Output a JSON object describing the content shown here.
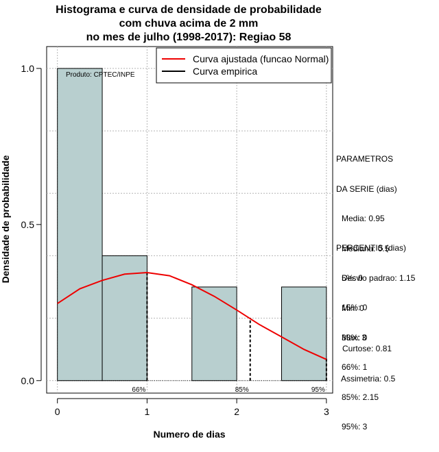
{
  "title": {
    "line1": "Histograma e curva de densidade de probabilidade",
    "line2": "com chuva acima de 2 mm",
    "line3": "no mes de julho (1998-2017): Regiao 58"
  },
  "credit": "Produto: CPTEC/INPE",
  "parametros": {
    "header1": "PARAMETROS",
    "header2": "DA SERIE (dias)",
    "media": "Media: 0.95",
    "mediana": "Mediana: 0.5",
    "desvio": "Desvio padrao: 1.15",
    "min": "Min: 0",
    "max": "Max: 3"
  },
  "percentis": {
    "header": "PERCENTIS (dias)",
    "p5": "5%: 0",
    "p15": "15%: 0",
    "p33": "33%: 0",
    "p66": "66%: 1",
    "p85": "85%: 2.15",
    "p95": "95%: 3"
  },
  "shape": {
    "curtose": "Curtose: 0.81",
    "assimetria": "Assimetria: 0.5"
  },
  "colors": {
    "bar_fill": "#b8cfcf",
    "fit_curve": "#ee0000",
    "empirical": "#000000",
    "grid": "#b4b4b4"
  },
  "chart_data": {
    "type": "bar",
    "title": "Histograma e curva de densidade de probabilidade com chuva acima de 2 mm no mes de julho (1998-2017): Regiao 58",
    "xlabel": "Numero de dias",
    "ylabel": "Densidade de probabilidade",
    "xlim": [
      -0.12,
      3.07
    ],
    "ylim": [
      -0.04,
      1.07
    ],
    "x_ticks": [
      0,
      1,
      2,
      3
    ],
    "x_tick_labels": [
      "0",
      "1",
      "2",
      "3"
    ],
    "y_ticks": [
      0.0,
      0.5,
      1.0
    ],
    "y_tick_labels": [
      "0.0",
      "0.5",
      "1.0"
    ],
    "grid": true,
    "bins": [
      {
        "start": 0.0,
        "end": 0.5,
        "density": 1.0
      },
      {
        "start": 0.5,
        "end": 1.0,
        "density": 0.4
      },
      {
        "start": 1.0,
        "end": 1.5,
        "density": 0.0
      },
      {
        "start": 1.5,
        "end": 2.0,
        "density": 0.3
      },
      {
        "start": 2.0,
        "end": 2.5,
        "density": 0.0
      },
      {
        "start": 2.5,
        "end": 3.0,
        "density": 0.3
      }
    ],
    "fitted_curve": {
      "name": "Curva ajustada (funcao Normal)",
      "mean": 0.95,
      "sd": 1.15,
      "x": [
        0,
        0.25,
        0.5,
        0.75,
        1.0,
        1.25,
        1.5,
        1.75,
        2.0,
        2.25,
        2.5,
        2.75,
        3.0
      ],
      "y": [
        0.247,
        0.294,
        0.321,
        0.341,
        0.346,
        0.336,
        0.307,
        0.27,
        0.226,
        0.18,
        0.14,
        0.1,
        0.068
      ]
    },
    "empirical_curve": {
      "name": "Curva empirica"
    },
    "percentile_markers": [
      {
        "label": "66%",
        "x": 1.0
      },
      {
        "label": "85%",
        "x": 2.15
      },
      {
        "label": "95%",
        "x": 3.0
      }
    ],
    "legend": {
      "position": "top-right",
      "entries": [
        "Curva ajustada (funcao Normal)",
        "Curva empirica"
      ]
    }
  }
}
